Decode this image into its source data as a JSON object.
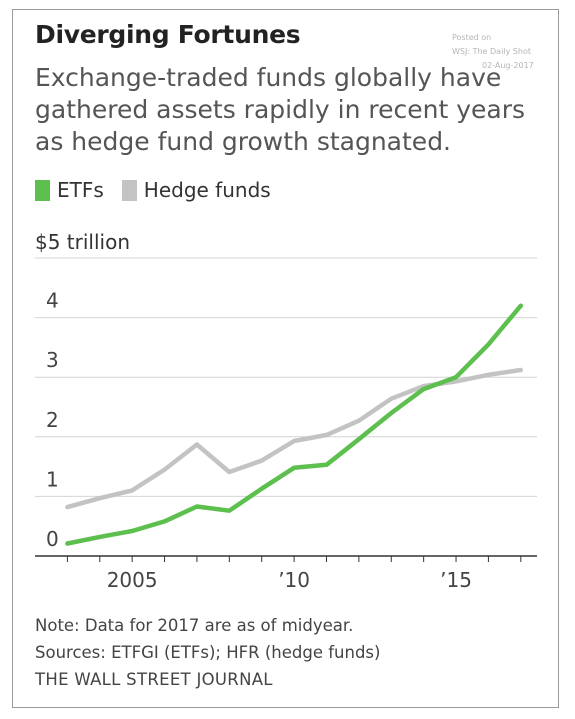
{
  "title": "Diverging Fortunes",
  "watermark": {
    "line1": "Posted on",
    "line2": "WSJ: The Daily Shot",
    "line3": "02-Aug-2017"
  },
  "subtitle": "Exchange-traded funds globally have gathered assets rapidly in recent years as hedge fund growth stagnated.",
  "legend": [
    {
      "label": "ETFs",
      "color": "#5cbf4e"
    },
    {
      "label": "Hedge funds",
      "color": "#c3c3c3"
    }
  ],
  "unit_label": "$5 trillion",
  "chart_data": {
    "type": "line",
    "x": [
      2003,
      2004,
      2005,
      2006,
      2007,
      2008,
      2009,
      2010,
      2011,
      2012,
      2013,
      2014,
      2015,
      2016,
      2017
    ],
    "series": [
      {
        "name": "ETFs",
        "color": "#5cbf4e",
        "values": [
          0.21,
          0.32,
          0.42,
          0.58,
          0.83,
          0.76,
          1.13,
          1.48,
          1.53,
          1.96,
          2.4,
          2.8,
          3.0,
          3.55,
          4.2
        ]
      },
      {
        "name": "Hedge funds",
        "color": "#c3c3c3",
        "values": [
          0.82,
          0.97,
          1.1,
          1.45,
          1.87,
          1.41,
          1.6,
          1.93,
          2.03,
          2.27,
          2.64,
          2.85,
          2.93,
          3.04,
          3.12
        ]
      }
    ],
    "ylim": [
      0,
      5
    ],
    "y_ticks": [
      {
        "value": 0,
        "label": "0"
      },
      {
        "value": 1,
        "label": "1"
      },
      {
        "value": 2,
        "label": "2"
      },
      {
        "value": 3,
        "label": "3"
      },
      {
        "value": 4,
        "label": "4"
      }
    ],
    "x_ticks": [
      {
        "value": 2005,
        "label": "2005"
      },
      {
        "value": 2010,
        "label": "’10"
      },
      {
        "value": 2015,
        "label": "’15"
      }
    ],
    "xlim": [
      2002.0,
      2017.5
    ],
    "grid": true,
    "legend_position": "top-left"
  },
  "notes": {
    "note": "Note: Data for 2017 are as of midyear.",
    "sources": "Sources: ETFGI (ETFs); HFR (hedge funds)",
    "publisher": "THE WALL STREET JOURNAL"
  }
}
